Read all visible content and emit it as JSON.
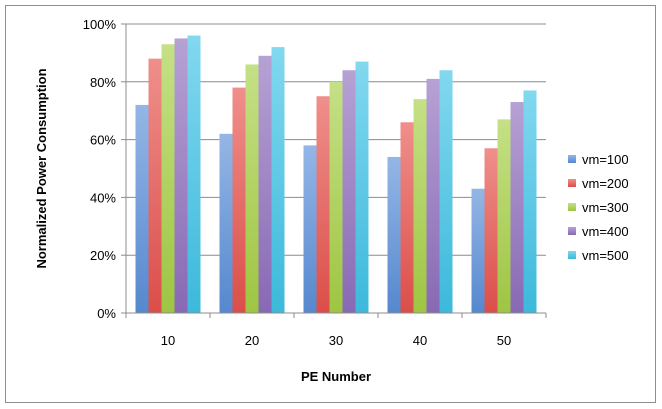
{
  "chart_data": {
    "type": "bar",
    "title": "",
    "xlabel": "PE Number",
    "ylabel": "Normalized Power Consumption",
    "categories": [
      "10",
      "20",
      "30",
      "40",
      "50"
    ],
    "ylim": [
      0,
      100
    ],
    "y_ticks": [
      0,
      20,
      40,
      60,
      80,
      100
    ],
    "y_tick_labels": [
      "0%",
      "20%",
      "40%",
      "60%",
      "80%",
      "100%"
    ],
    "y_unit": "%",
    "grid": "horizontal",
    "legend_position": "right",
    "series": [
      {
        "name": "vm=100",
        "color": "#5b8fd9",
        "values": [
          72,
          62,
          58,
          54,
          43
        ]
      },
      {
        "name": "vm=200",
        "color": "#e6524d",
        "values": [
          88,
          78,
          75,
          66,
          57
        ]
      },
      {
        "name": "vm=300",
        "color": "#a6cf45",
        "values": [
          93,
          86,
          80,
          74,
          67
        ]
      },
      {
        "name": "vm=400",
        "color": "#8f6ebd",
        "values": [
          95,
          89,
          84,
          81,
          73
        ]
      },
      {
        "name": "vm=500",
        "color": "#3fc3e6",
        "values": [
          96,
          92,
          87,
          84,
          77
        ]
      }
    ]
  }
}
